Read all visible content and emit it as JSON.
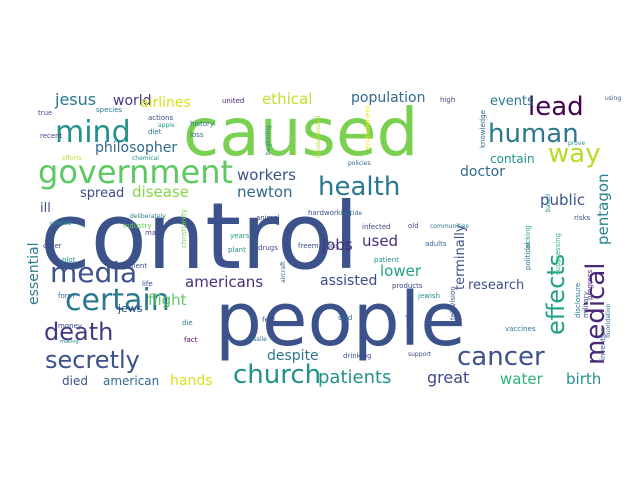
{
  "words": [
    {
      "text": "control",
      "color": "#3b528b"
    },
    {
      "text": "people",
      "color": "#3b528b"
    },
    {
      "text": "caused",
      "color": "#7ad151"
    },
    {
      "text": "government",
      "color": "#5ec962"
    },
    {
      "text": "mind",
      "color": "#21918c"
    },
    {
      "text": "human",
      "color": "#2a788e"
    },
    {
      "text": "lead",
      "color": "#440154"
    },
    {
      "text": "health",
      "color": "#2a788e"
    },
    {
      "text": "way",
      "color": "#b5de2b"
    },
    {
      "text": "certain",
      "color": "#2a788e"
    },
    {
      "text": "media",
      "color": "#3b528b"
    },
    {
      "text": "church",
      "color": "#21918c"
    },
    {
      "text": "cancer",
      "color": "#3b528b"
    },
    {
      "text": "death",
      "color": "#443983"
    },
    {
      "text": "secretly",
      "color": "#3b528b"
    },
    {
      "text": "effects",
      "color": "#1fa187"
    },
    {
      "text": "medical",
      "color": "#482878"
    },
    {
      "text": "philosopher",
      "color": "#31688e"
    },
    {
      "text": "jesus",
      "color": "#2a788e"
    },
    {
      "text": "world",
      "color": "#443983"
    },
    {
      "text": "airlines",
      "color": "#d8e219"
    },
    {
      "text": "ethical",
      "color": "#c0df25"
    },
    {
      "text": "population",
      "color": "#31688e"
    },
    {
      "text": "events",
      "color": "#2a788e"
    },
    {
      "text": "pentagon",
      "color": "#25848e"
    },
    {
      "text": "workers",
      "color": "#3b528b"
    },
    {
      "text": "newton",
      "color": "#31688e"
    },
    {
      "text": "disease",
      "color": "#86d549"
    },
    {
      "text": "spread",
      "color": "#3e4989"
    },
    {
      "text": "doctor",
      "color": "#31688e"
    },
    {
      "text": "public",
      "color": "#3b528b"
    },
    {
      "text": "contain",
      "color": "#21918c"
    },
    {
      "text": "jobs",
      "color": "#472d7b"
    },
    {
      "text": "used",
      "color": "#472d7b"
    },
    {
      "text": "flight",
      "color": "#5ec962"
    },
    {
      "text": "americans",
      "color": "#472d7b"
    },
    {
      "text": "assisted",
      "color": "#3e4989"
    },
    {
      "text": "lower",
      "color": "#20a486"
    },
    {
      "text": "research",
      "color": "#3b528b"
    },
    {
      "text": "patients",
      "color": "#21918c"
    },
    {
      "text": "great",
      "color": "#3e4989"
    },
    {
      "text": "water",
      "color": "#2db27d"
    },
    {
      "text": "birth",
      "color": "#21918c"
    },
    {
      "text": "hands",
      "color": "#d8e219"
    },
    {
      "text": "despite",
      "color": "#2a788e"
    },
    {
      "text": "died",
      "color": "#3b528b"
    },
    {
      "text": "american",
      "color": "#31688e"
    },
    {
      "text": "essential",
      "color": "#2a788e"
    },
    {
      "text": "ill",
      "color": "#3b528b"
    },
    {
      "text": "jews",
      "color": "#3e4989"
    },
    {
      "text": "terminally",
      "color": "#3b528b"
    },
    {
      "text": "united",
      "color": "#482878"
    },
    {
      "text": "history",
      "color": "#2a788e"
    },
    {
      "text": "loss",
      "color": "#31688e"
    },
    {
      "text": "species",
      "color": "#2a788e"
    },
    {
      "text": "actions",
      "color": "#3e4989"
    },
    {
      "text": "diet",
      "color": "#2a788e"
    },
    {
      "text": "apple",
      "color": "#1fa187"
    },
    {
      "text": "recent",
      "color": "#3e4989"
    },
    {
      "text": "chemical",
      "color": "#21918c"
    },
    {
      "text": "efforts",
      "color": "#b5de2b"
    },
    {
      "text": "true",
      "color": "#3b528b"
    },
    {
      "text": "beginning",
      "color": "#25848e"
    },
    {
      "text": "policies",
      "color": "#31688e"
    },
    {
      "text": "revolutionized",
      "color": "#b5de2b"
    },
    {
      "text": "environment",
      "color": "#fde725"
    },
    {
      "text": "high",
      "color": "#3e4989"
    },
    {
      "text": "knowledge",
      "color": "#31688e"
    },
    {
      "text": "prove",
      "color": "#21918c"
    },
    {
      "text": "using",
      "color": "#3b528b"
    },
    {
      "text": "industry",
      "color": "#6ece58"
    },
    {
      "text": "related",
      "color": "#21918c"
    },
    {
      "text": "order",
      "color": "#3e4989"
    },
    {
      "text": "deliberately",
      "color": "#2a788e"
    },
    {
      "text": "mary",
      "color": "#3e4989"
    },
    {
      "text": "christianity",
      "color": "#7ad151"
    },
    {
      "text": "hardworking",
      "color": "#3b528b"
    },
    {
      "text": "infected",
      "color": "#3e4989"
    },
    {
      "text": "old",
      "color": "#3e4989"
    },
    {
      "text": "communities",
      "color": "#2a788e"
    },
    {
      "text": "suicide",
      "color": "#31688e"
    },
    {
      "text": "animal",
      "color": "#3e4989"
    },
    {
      "text": "locking",
      "color": "#20a486"
    },
    {
      "text": "political",
      "color": "#31688e"
    },
    {
      "text": "based",
      "color": "#21918c"
    },
    {
      "text": "progress",
      "color": "#482878"
    },
    {
      "text": "military",
      "color": "#3b528b"
    },
    {
      "text": "risks",
      "color": "#3e4989"
    },
    {
      "text": "suppressing",
      "color": "#35b779"
    },
    {
      "text": "plot",
      "color": "#21918c"
    },
    {
      "text": "treatment",
      "color": "#3e4989"
    },
    {
      "text": "years",
      "color": "#1fa187"
    },
    {
      "text": "plant",
      "color": "#21918c"
    },
    {
      "text": "drugs",
      "color": "#3e4989"
    },
    {
      "text": "freemasons",
      "color": "#3b528b"
    },
    {
      "text": "adults",
      "color": "#31688e"
    },
    {
      "text": "patient",
      "color": "#21918c"
    },
    {
      "text": "jewish",
      "color": "#21918c"
    },
    {
      "text": "disclosure",
      "color": "#2a788e"
    },
    {
      "text": "fluoridation",
      "color": "#31688e"
    },
    {
      "text": "invention",
      "color": "#3b528b"
    },
    {
      "text": "form",
      "color": "#31688e"
    },
    {
      "text": "life",
      "color": "#3e4989"
    },
    {
      "text": "aircraft",
      "color": "#31688e"
    },
    {
      "text": "products",
      "color": "#3e4989"
    },
    {
      "text": "television",
      "color": "#3b528b"
    },
    {
      "text": "money",
      "color": "#3e4989"
    },
    {
      "text": "die",
      "color": "#2a788e"
    },
    {
      "text": "feel",
      "color": "#3e4989"
    },
    {
      "text": "said",
      "color": "#31688e"
    },
    {
      "text": "word",
      "color": "#3e4989"
    },
    {
      "text": "vaccines",
      "color": "#2a788e"
    },
    {
      "text": "fact",
      "color": "#440154"
    },
    {
      "text": "missile",
      "color": "#31688e"
    },
    {
      "text": "drinking",
      "color": "#3b528b"
    },
    {
      "text": "support",
      "color": "#3e4989"
    },
    {
      "text": "making",
      "color": "#25848e"
    }
  ]
}
